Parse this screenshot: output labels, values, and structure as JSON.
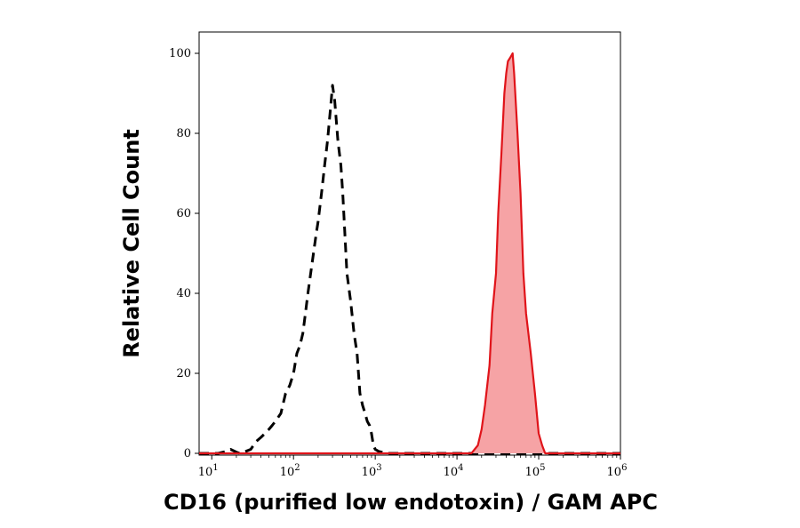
{
  "chart_data": {
    "type": "area",
    "title": "",
    "xlabel": "CD16 (purified low endotoxin) / GAM APC",
    "ylabel": "Relative Cell Count",
    "x_scale": "log",
    "xlim": [
      7,
      1000000
    ],
    "ylim": [
      0,
      104
    ],
    "grid": false,
    "legend": "none",
    "y_ticks": [
      {
        "value": 0,
        "label": "0"
      },
      {
        "value": 20,
        "label": "20"
      },
      {
        "value": 40,
        "label": "40"
      },
      {
        "value": 60,
        "label": "60"
      },
      {
        "value": 80,
        "label": "80"
      },
      {
        "value": 100,
        "label": "100"
      }
    ],
    "x_ticks": [
      {
        "value": 10,
        "base": "10",
        "exp": "1"
      },
      {
        "value": 100,
        "base": "10",
        "exp": "2"
      },
      {
        "value": 1000,
        "base": "10",
        "exp": "3"
      },
      {
        "value": 10000,
        "base": "10",
        "exp": "4"
      },
      {
        "value": 100000,
        "base": "10",
        "exp": "5"
      },
      {
        "value": 1000000,
        "base": "10",
        "exp": "6"
      }
    ],
    "series": [
      {
        "style": "dashed",
        "color": "#000000",
        "fill": "none",
        "x": [
          7,
          12,
          15,
          17,
          20,
          22,
          26,
          30,
          35,
          40,
          45,
          50,
          55,
          60,
          70,
          80,
          90,
          100,
          110,
          120,
          130,
          140,
          150,
          170,
          190,
          200,
          220,
          240,
          260,
          280,
          300,
          320,
          350,
          380,
          400,
          450,
          500,
          550,
          600,
          650,
          700,
          750,
          800,
          850,
          900,
          950,
          1000,
          1100,
          1200,
          1300,
          1500,
          2000,
          1000000
        ],
        "y": [
          0,
          0,
          0.5,
          1,
          0.3,
          0,
          0.5,
          1,
          3,
          4,
          5,
          6,
          7,
          8,
          10,
          15,
          17,
          20,
          25,
          27,
          30,
          35,
          40,
          48,
          55,
          58,
          65,
          72,
          78,
          85,
          92,
          88,
          78,
          72,
          65,
          45,
          38,
          30,
          25,
          15,
          12,
          10,
          8,
          7,
          5,
          2,
          1,
          0.5,
          0.3,
          0.1,
          0,
          0,
          0
        ]
      },
      {
        "style": "solid",
        "color": "#e0141a",
        "fill": "#f6a3a5",
        "x": [
          7,
          15000,
          18000,
          20000,
          22000,
          25000,
          27000,
          30000,
          32000,
          35000,
          38000,
          40000,
          42000,
          45000,
          48000,
          50000,
          55000,
          60000,
          65000,
          70000,
          80000,
          90000,
          100000,
          110000,
          120000,
          150000,
          1000000
        ],
        "y": [
          0,
          0,
          2,
          6,
          12,
          22,
          35,
          45,
          60,
          75,
          90,
          95,
          98,
          99,
          100,
          95,
          80,
          65,
          45,
          35,
          25,
          15,
          5,
          2,
          0,
          0,
          0
        ]
      }
    ]
  }
}
